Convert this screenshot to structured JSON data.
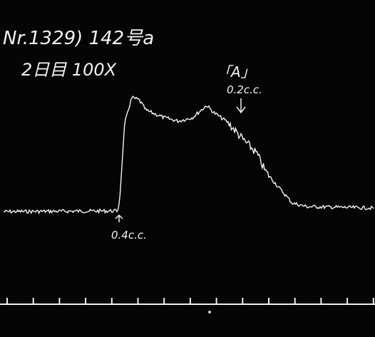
{
  "header": {
    "title": "Nr.1329) 142号a",
    "subtitle": "2日目 100X"
  },
  "annotations": [
    {
      "label": "「A」",
      "dose": "0.2c.c."
    },
    {
      "dose": "0.4c.c."
    }
  ]
}
